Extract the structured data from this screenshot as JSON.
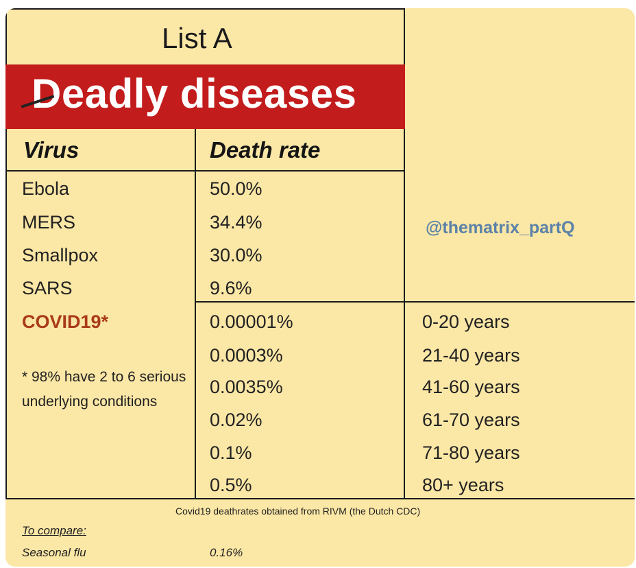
{
  "title": "List A",
  "banner": "Deadly diseases",
  "headers": {
    "virus": "Virus",
    "death_rate": "Death rate"
  },
  "diseases": [
    {
      "name": "Ebola",
      "rate": "50.0%"
    },
    {
      "name": "MERS",
      "rate": "34.4%"
    },
    {
      "name": "Smallpox",
      "rate": "30.0%"
    },
    {
      "name": "SARS",
      "rate": "9.6%"
    }
  ],
  "covid": {
    "name": "COVID19*",
    "note": "* 98% have 2 to 6 serious underlying conditions",
    "by_age": [
      {
        "rate": "0.00001%",
        "age": "0-20 years"
      },
      {
        "rate": "0.0003%",
        "age": "21-40 years"
      },
      {
        "rate": "0.0035%",
        "age": "41-60 years"
      },
      {
        "rate": "0.02%",
        "age": "61-70 years"
      },
      {
        "rate": "0.1%",
        "age": "71-80 years"
      },
      {
        "rate": "0.5%",
        "age": "80+ years"
      }
    ]
  },
  "handle": "@thematrix_partQ",
  "source": "Covid19 deathrates obtained from RIVM (the Dutch CDC)",
  "compare": {
    "label": "To compare:",
    "item": "Seasonal flu",
    "value": "0.16%"
  },
  "colors": {
    "background": "#fbe7a6",
    "banner": "#c31c1c",
    "covid": "#a93a1a",
    "handle": "#5b82a8"
  }
}
